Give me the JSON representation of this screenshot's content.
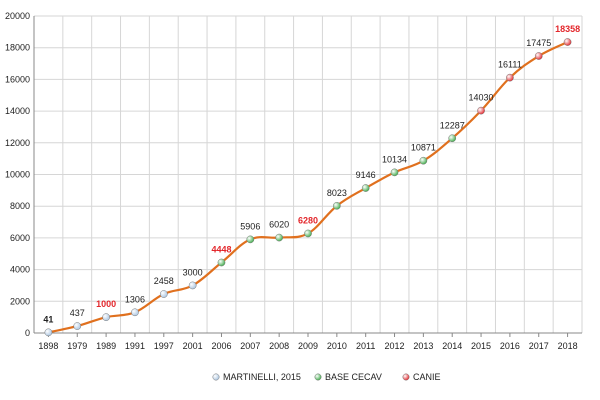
{
  "chart_data": {
    "type": "line",
    "title": "",
    "xlabel": "",
    "ylabel": "",
    "ylim": [
      0,
      20000
    ],
    "y_ticks": [
      0,
      2000,
      4000,
      6000,
      8000,
      10000,
      12000,
      14000,
      16000,
      18000,
      20000
    ],
    "grid": true,
    "legend_position": "bottom",
    "line_color": "#e0701e",
    "categories": [
      "1898",
      "1979",
      "1989",
      "1991",
      "1997",
      "2001",
      "2006",
      "2007",
      "2008",
      "2009",
      "2010",
      "2011",
      "2012",
      "2013",
      "2014",
      "2015",
      "2016",
      "2017",
      "2018"
    ],
    "values": [
      41,
      437,
      1000,
      1306,
      2458,
      3000,
      4448,
      5906,
      6020,
      6280,
      8023,
      9146,
      10134,
      10871,
      12287,
      14030,
      16111,
      17475,
      18358
    ],
    "point_source": [
      "martinelli",
      "martinelli",
      "martinelli",
      "martinelli",
      "martinelli",
      "martinelli",
      "cecav",
      "cecav",
      "cecav",
      "cecav",
      "cecav",
      "cecav",
      "cecav",
      "cecav",
      "cecav",
      "canie",
      "canie",
      "canie",
      "canie"
    ],
    "label_style": [
      "bold",
      "normal",
      "highlight",
      "normal",
      "normal",
      "normal",
      "highlight",
      "normal",
      "normal",
      "highlight",
      "normal",
      "normal",
      "normal",
      "normal",
      "normal",
      "normal",
      "normal",
      "normal",
      "highlight"
    ],
    "legend": [
      {
        "key": "martinelli",
        "name": "MARTINELLI, 2015",
        "color": "#a9c4e0"
      },
      {
        "key": "cecav",
        "name": "BASE CECAV",
        "color": "#3daa48"
      },
      {
        "key": "canie",
        "name": "CANIE",
        "color": "#e3262b"
      }
    ]
  }
}
